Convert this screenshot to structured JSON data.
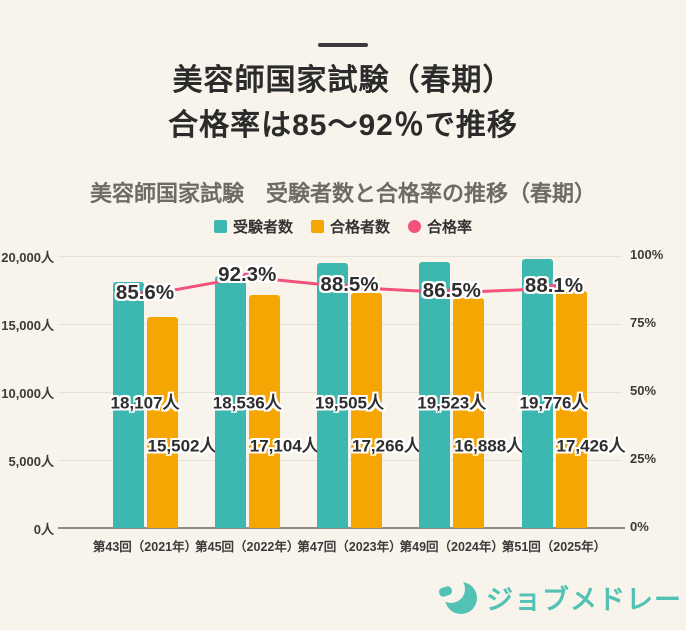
{
  "header": {
    "title_line1": "美容師国家試験（春期）",
    "title_line2": "合格率は85～92％で推移"
  },
  "chart": {
    "title": "美容師国家試験　受験者数と合格率の推移（春期）",
    "legend": [
      {
        "label": "受験者数",
        "color": "#3CB8B0",
        "shape": "square"
      },
      {
        "label": "合格者数",
        "color": "#F5A602",
        "shape": "square"
      },
      {
        "label": "合格率",
        "color": "#F2527B",
        "shape": "circle"
      }
    ]
  },
  "chart_data": {
    "type": "bar",
    "title": "美容師国家試験　受験者数と合格率の推移（春期）",
    "categories": [
      "第43回（2021年）",
      "第45回（2022年）",
      "第47回（2023年）",
      "第49回（2024年）",
      "第51回（2025年）"
    ],
    "series": [
      {
        "name": "受験者数",
        "type": "bar",
        "axis": "left",
        "color": "#3CB8B0",
        "values": [
          18107,
          18536,
          19505,
          19523,
          19776
        ],
        "labels": [
          "18,107人",
          "18,536人",
          "19,505人",
          "19,523人",
          "19,776人"
        ]
      },
      {
        "name": "合格者数",
        "type": "bar",
        "axis": "left",
        "color": "#F5A602",
        "values": [
          15502,
          17104,
          17266,
          16888,
          17426
        ],
        "labels": [
          "15,502人",
          "17,104人",
          "17,266人",
          "16,888人",
          "17,426人"
        ]
      },
      {
        "name": "合格率",
        "type": "line",
        "axis": "right",
        "color": "#F2527B",
        "values": [
          85.6,
          92.3,
          88.5,
          86.5,
          88.1
        ],
        "labels": [
          "85.6%",
          "92.3%",
          "88.5%",
          "86.5%",
          "88.1%"
        ]
      }
    ],
    "left_axis": {
      "min": 0,
      "max": 20000,
      "ticks": [
        "0人",
        "5,000人",
        "10,000人",
        "15,000人",
        "20,000人"
      ]
    },
    "right_axis": {
      "min": 0,
      "max": 100,
      "ticks": [
        "0%",
        "25%",
        "50%",
        "75%",
        "100%"
      ]
    },
    "grid": true,
    "legend_position": "top"
  },
  "footer": {
    "logo_text": "ジョブメドレー",
    "logo_color": "#52C2B4"
  },
  "colors": {
    "background": "#F8F4EB",
    "examinees_bar": "#3CB8B0",
    "passers_bar": "#F5A602",
    "pass_rate_line": "#F2527B",
    "gridline": "#E7E2D6",
    "axis_line": "#8F8B84",
    "title_text": "#2B2B2B",
    "chart_title_text": "#6F6B62"
  }
}
